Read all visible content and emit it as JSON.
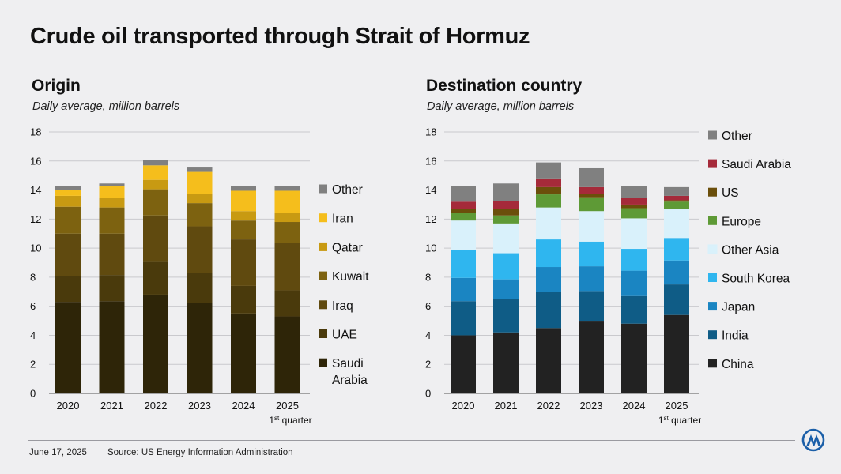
{
  "title": "Crude oil transported through Strait of Hormuz",
  "footer": {
    "date": "June 17, 2025",
    "source": "Source: US Energy Information Administration"
  },
  "logo": {
    "icon": "aa-agency-logo-icon",
    "color": "#1b5fa8"
  },
  "chart_data": [
    {
      "type": "bar",
      "stacked": true,
      "title": "Origin",
      "subtitle": "Daily average, million barrels",
      "categories": [
        "2020",
        "2021",
        "2022",
        "2023",
        "2024",
        "2025"
      ],
      "category_note": {
        "category": "2025",
        "text_sup": "st",
        "text_pre": "1",
        "text_post": " quarter"
      },
      "ylim": [
        0,
        18
      ],
      "yticks": [
        0,
        2,
        4,
        6,
        8,
        10,
        12,
        14,
        16,
        18
      ],
      "grid": true,
      "legend_position": "right",
      "series": [
        {
          "name": "Saudi Arabia",
          "color": "#2e2508",
          "values": [
            6.3,
            6.35,
            6.8,
            6.2,
            5.5,
            5.3
          ]
        },
        {
          "name": "UAE",
          "color": "#4a3a0c",
          "values": [
            1.8,
            1.8,
            2.25,
            2.1,
            1.9,
            1.8
          ]
        },
        {
          "name": "Iraq",
          "color": "#604a0f",
          "values": [
            2.9,
            2.85,
            3.2,
            3.2,
            3.2,
            3.25
          ]
        },
        {
          "name": "Kuwait",
          "color": "#7d6210",
          "values": [
            1.85,
            1.8,
            1.8,
            1.6,
            1.3,
            1.45
          ]
        },
        {
          "name": "Qatar",
          "color": "#c89a12",
          "values": [
            0.75,
            0.65,
            0.65,
            0.65,
            0.65,
            0.65
          ]
        },
        {
          "name": "Iran",
          "color": "#f5be1c",
          "values": [
            0.4,
            0.8,
            1.0,
            1.5,
            1.4,
            1.5
          ]
        },
        {
          "name": "Other",
          "color": "#808080",
          "values": [
            0.3,
            0.2,
            0.35,
            0.3,
            0.35,
            0.3
          ]
        }
      ]
    },
    {
      "type": "bar",
      "stacked": true,
      "title": "Destination country",
      "subtitle": "Daily average, million barrels",
      "categories": [
        "2020",
        "2021",
        "2022",
        "2023",
        "2024",
        "2025"
      ],
      "category_note": {
        "category": "2025",
        "text_sup": "st",
        "text_pre": "1",
        "text_post": " quarter"
      },
      "ylim": [
        0,
        18
      ],
      "yticks": [
        0,
        2,
        4,
        6,
        8,
        10,
        12,
        14,
        16,
        18
      ],
      "grid": true,
      "legend_position": "right",
      "series": [
        {
          "name": "China",
          "color": "#222222",
          "values": [
            4.0,
            4.2,
            4.5,
            5.0,
            4.8,
            5.4
          ]
        },
        {
          "name": "India",
          "color": "#0f5c86",
          "values": [
            2.35,
            2.3,
            2.5,
            2.05,
            1.9,
            2.1
          ]
        },
        {
          "name": "Japan",
          "color": "#1a85c2",
          "values": [
            1.6,
            1.35,
            1.7,
            1.7,
            1.75,
            1.65
          ]
        },
        {
          "name": "South Korea",
          "color": "#2fb6ef",
          "values": [
            1.9,
            1.8,
            1.9,
            1.7,
            1.5,
            1.55
          ]
        },
        {
          "name": "Other Asia",
          "color": "#d9f1fb",
          "values": [
            2.05,
            2.05,
            2.2,
            2.1,
            2.1,
            2.0
          ]
        },
        {
          "name": "Europe",
          "color": "#5e9a36",
          "values": [
            0.55,
            0.55,
            0.9,
            0.95,
            0.7,
            0.5
          ]
        },
        {
          "name": "US",
          "color": "#6b4f0b",
          "values": [
            0.25,
            0.45,
            0.5,
            0.25,
            0.25,
            0.1
          ]
        },
        {
          "name": "Saudi Arabia",
          "color": "#a52a3a",
          "values": [
            0.5,
            0.55,
            0.6,
            0.45,
            0.45,
            0.3
          ]
        },
        {
          "name": "Other",
          "color": "#808080",
          "values": [
            1.1,
            1.2,
            1.1,
            1.3,
            0.8,
            0.6
          ]
        }
      ]
    }
  ]
}
